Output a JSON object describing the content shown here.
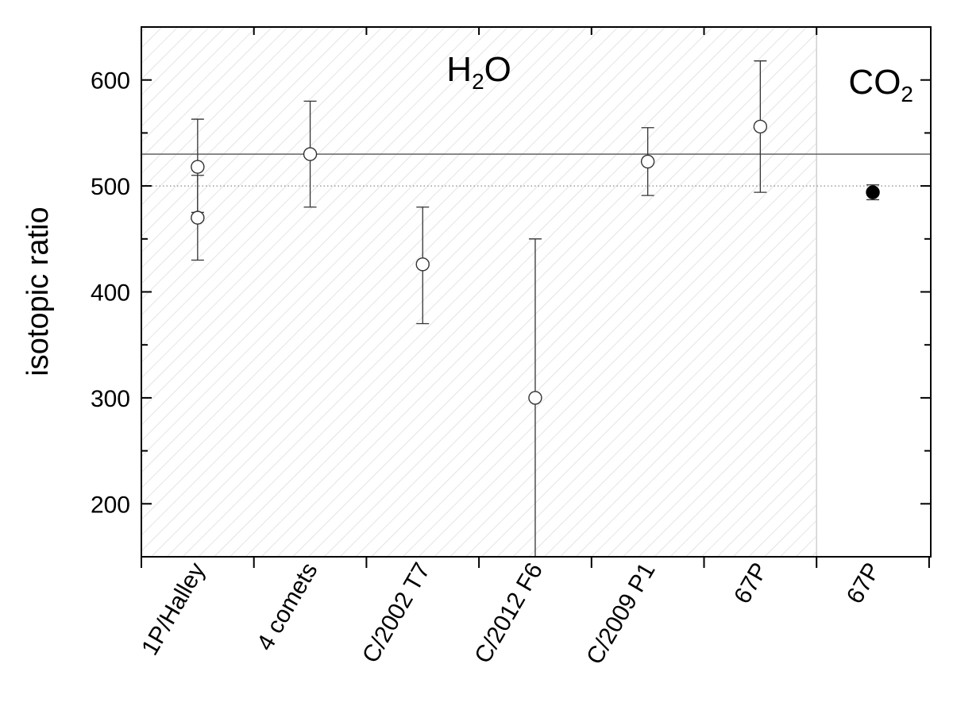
{
  "chart_data": {
    "type": "scatter",
    "ylabel": "isotopic ratio",
    "xlabel": "",
    "ylim": [
      150,
      650
    ],
    "y_major_ticks": [
      200,
      300,
      400,
      500,
      600
    ],
    "y_minor_step": 50,
    "categories": [
      "1P/Halley",
      "4 comets",
      "C/2002 T7",
      "C/2012 F6",
      "C/2009 P1",
      "67P",
      "67P"
    ],
    "regions": [
      {
        "label_main": "H",
        "label_sub": "2",
        "label_tail": "O",
        "from_category": 0,
        "to_category": 5,
        "hatched": true
      },
      {
        "label_main": "CO",
        "label_sub": "2",
        "label_tail": "",
        "from_category": 6,
        "to_category": 6,
        "hatched": false
      }
    ],
    "reference_lines": [
      {
        "y": 530,
        "style": "solid"
      },
      {
        "y": 500,
        "style": "dotted"
      }
    ],
    "series": [
      {
        "marker": "open-circle",
        "points": [
          {
            "category": 0,
            "y": 518,
            "err_low": 43,
            "err_high": 45
          },
          {
            "category": 0,
            "y": 470,
            "err_low": 40,
            "err_high": 40
          },
          {
            "category": 1,
            "y": 530,
            "err_low": 50,
            "err_high": 50
          },
          {
            "category": 2,
            "y": 426,
            "err_low": 56,
            "err_high": 54
          },
          {
            "category": 3,
            "y": 300,
            "err_low": 150,
            "err_high": 150
          },
          {
            "category": 4,
            "y": 523,
            "err_low": 32,
            "err_high": 32
          },
          {
            "category": 5,
            "y": 556,
            "err_low": 62,
            "err_high": 62
          }
        ]
      },
      {
        "marker": "filled-circle",
        "points": [
          {
            "category": 6,
            "y": 494,
            "err_low": 7,
            "err_high": 7
          }
        ]
      }
    ],
    "grid": false,
    "legend": "none"
  }
}
